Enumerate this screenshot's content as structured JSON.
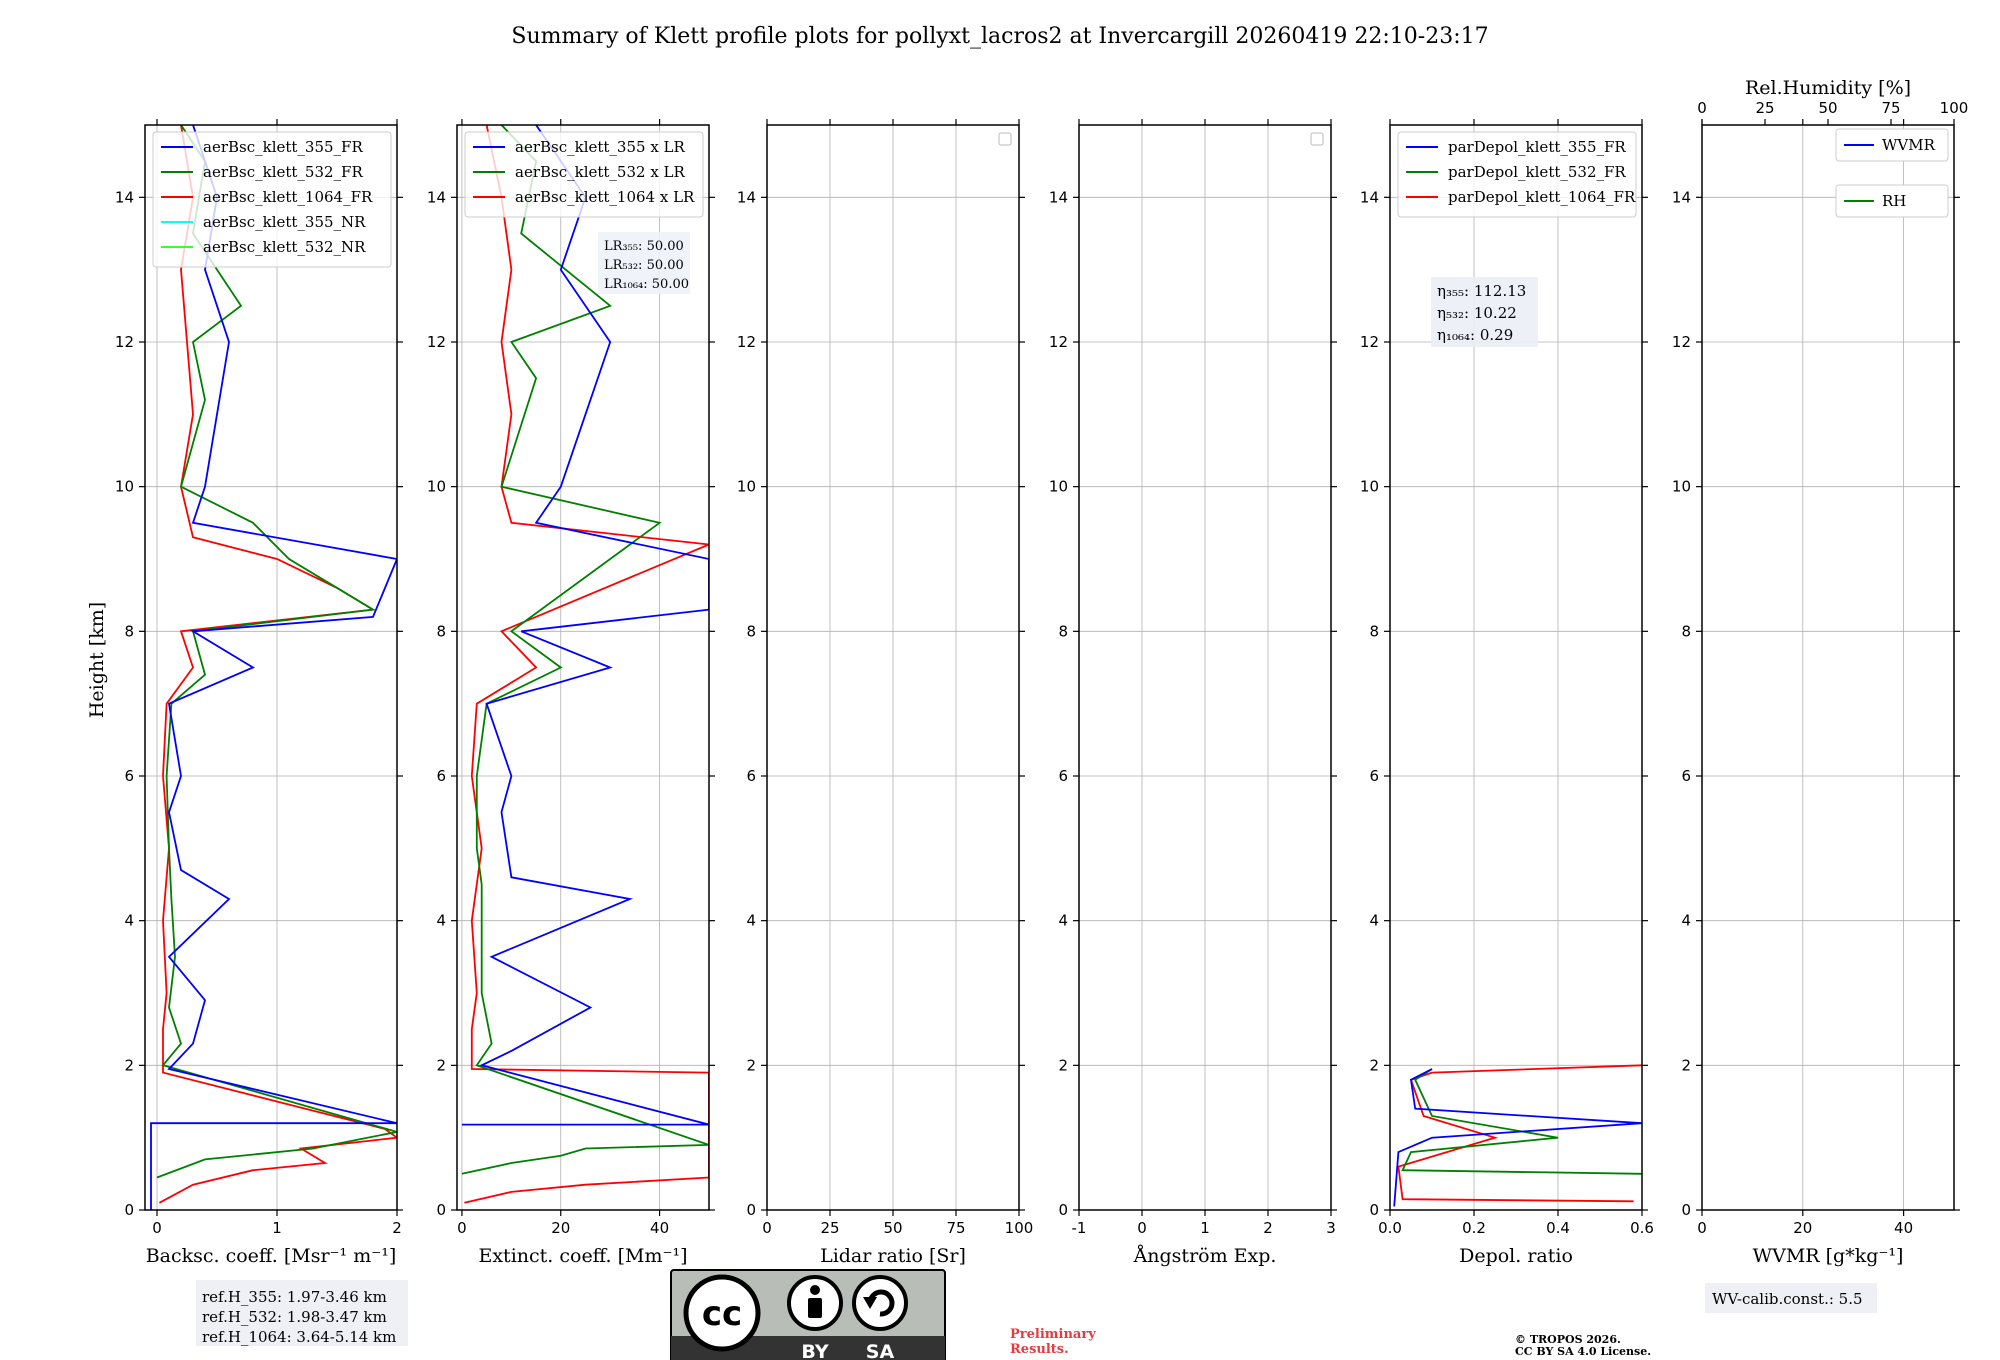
{
  "figure": {
    "title": "Summary of Klett profile plots for pollyxt_lacros2 at Invercargill 20260419 22:10-23:17",
    "ylabel": "Height [km]"
  },
  "chart_data": [
    {
      "id": "backscatter",
      "type": "line",
      "xlabel": "Backsc. coeff. [Msr⁻¹ m⁻¹]",
      "xlim": [
        -0.1,
        2.0
      ],
      "xticks": [
        0,
        1,
        2
      ],
      "ylim": [
        0,
        15
      ],
      "yticks": [
        0,
        2,
        4,
        6,
        8,
        10,
        12,
        14
      ],
      "grid": true,
      "legend": [
        "aerBsc_klett_355_FR",
        "aerBsc_klett_532_FR",
        "aerBsc_klett_1064_FR",
        "aerBsc_klett_355_NR",
        "aerBsc_klett_532_NR"
      ],
      "legend_colors": [
        "#0000ff",
        "#008000",
        "#ff0000",
        "#00ffff",
        "#33ff33"
      ],
      "series": [
        {
          "name": "aerBsc_klett_1064_FR",
          "color": "#ff0000",
          "points": [
            [
              0.02,
              0.1
            ],
            [
              0.3,
              0.35
            ],
            [
              0.8,
              0.55
            ],
            [
              1.4,
              0.65
            ],
            [
              1.2,
              0.85
            ],
            [
              2.0,
              1.0
            ],
            [
              1.9,
              1.12
            ],
            [
              0.05,
              1.9
            ],
            [
              0.05,
              2.5
            ],
            [
              0.08,
              3.0
            ],
            [
              0.05,
              4.0
            ],
            [
              0.1,
              5.0
            ],
            [
              0.05,
              6.0
            ],
            [
              0.08,
              7.0
            ],
            [
              0.3,
              7.5
            ],
            [
              0.2,
              8.0
            ],
            [
              1.8,
              8.3
            ],
            [
              1.5,
              8.6
            ],
            [
              1.0,
              9.0
            ],
            [
              0.3,
              9.3
            ],
            [
              0.2,
              10.0
            ],
            [
              0.3,
              11.0
            ],
            [
              0.25,
              12.0
            ],
            [
              0.2,
              13.0
            ],
            [
              0.3,
              14.0
            ],
            [
              0.2,
              15.0
            ]
          ]
        },
        {
          "name": "aerBsc_klett_532_FR",
          "color": "#008000",
          "points": [
            [
              0.0,
              0.45
            ],
            [
              0.4,
              0.7
            ],
            [
              1.3,
              0.85
            ],
            [
              2.0,
              1.08
            ],
            [
              0.05,
              2.0
            ],
            [
              0.2,
              2.3
            ],
            [
              0.1,
              2.8
            ],
            [
              0.15,
              3.5
            ],
            [
              0.12,
              4.3
            ],
            [
              0.1,
              5.0
            ],
            [
              0.08,
              6.0
            ],
            [
              0.12,
              7.0
            ],
            [
              0.4,
              7.4
            ],
            [
              0.3,
              8.0
            ],
            [
              1.8,
              8.3
            ],
            [
              1.4,
              8.7
            ],
            [
              1.1,
              9.0
            ],
            [
              0.8,
              9.5
            ],
            [
              0.2,
              10.0
            ],
            [
              0.4,
              11.2
            ],
            [
              0.3,
              12.0
            ],
            [
              0.7,
              12.5
            ],
            [
              0.3,
              13.5
            ],
            [
              0.4,
              14.5
            ],
            [
              0.2,
              15.0
            ]
          ]
        },
        {
          "name": "aerBsc_klett_355_FR",
          "color": "#0000ff",
          "points": [
            [
              -0.05,
              0.0
            ],
            [
              -0.05,
              1.2
            ],
            [
              2.0,
              1.2
            ],
            [
              0.1,
              1.95
            ],
            [
              0.3,
              2.3
            ],
            [
              0.4,
              2.9
            ],
            [
              0.1,
              3.5
            ],
            [
              0.6,
              4.3
            ],
            [
              0.2,
              4.7
            ],
            [
              0.1,
              5.5
            ],
            [
              0.2,
              6.0
            ],
            [
              0.1,
              7.0
            ],
            [
              0.8,
              7.5
            ],
            [
              0.3,
              8.0
            ],
            [
              1.8,
              8.2
            ],
            [
              2.0,
              9.0
            ],
            [
              0.3,
              9.5
            ],
            [
              0.4,
              10.0
            ],
            [
              0.5,
              11.0
            ],
            [
              0.6,
              12.0
            ],
            [
              0.4,
              13.0
            ],
            [
              0.5,
              14.0
            ],
            [
              0.3,
              15.0
            ]
          ]
        }
      ],
      "annotation": [
        "ref.H_355: 1.97-3.46 km",
        "ref.H_532: 1.98-3.47 km",
        "ref.H_1064: 3.64-5.14 km"
      ]
    },
    {
      "id": "extinction",
      "type": "line",
      "xlabel": "Extinct. coeff. [Mm⁻¹]",
      "xlim": [
        -1,
        50
      ],
      "xticks": [
        0,
        20,
        40
      ],
      "ylim": [
        0,
        15
      ],
      "grid": true,
      "legend": [
        "aerBsc_klett_355 x LR",
        "aerBsc_klett_532 x LR",
        "aerBsc_klett_1064 x LR"
      ],
      "legend_colors": [
        "#0000ff",
        "#008000",
        "#ff0000"
      ],
      "series": [
        {
          "name": "aerBsc_klett_1064 x LR",
          "color": "#ff0000",
          "points": [
            [
              0.5,
              0.1
            ],
            [
              10,
              0.25
            ],
            [
              25,
              0.35
            ],
            [
              50,
              0.45
            ],
            [
              50,
              1.9
            ],
            [
              2,
              1.95
            ],
            [
              2,
              2.5
            ],
            [
              3,
              3.0
            ],
            [
              2,
              4.0
            ],
            [
              4,
              5.0
            ],
            [
              2,
              6.0
            ],
            [
              3,
              7.0
            ],
            [
              15,
              7.5
            ],
            [
              8,
              8.0
            ],
            [
              50,
              9.2
            ],
            [
              10,
              9.5
            ],
            [
              8,
              10.0
            ],
            [
              10,
              11.0
            ],
            [
              8,
              12.0
            ],
            [
              10,
              13.0
            ],
            [
              8,
              14.0
            ],
            [
              5,
              15.0
            ]
          ]
        },
        {
          "name": "aerBsc_klett_532 x LR",
          "color": "#008000",
          "points": [
            [
              0,
              0.5
            ],
            [
              10,
              0.65
            ],
            [
              20,
              0.75
            ],
            [
              25,
              0.85
            ],
            [
              50,
              0.9
            ],
            [
              3,
              2.0
            ],
            [
              6,
              2.3
            ],
            [
              4,
              3.0
            ],
            [
              4,
              4.5
            ],
            [
              3,
              5.0
            ],
            [
              3,
              6.0
            ],
            [
              5,
              7.0
            ],
            [
              20,
              7.5
            ],
            [
              10,
              8.0
            ],
            [
              40,
              9.5
            ],
            [
              8,
              10.0
            ],
            [
              15,
              11.5
            ],
            [
              10,
              12.0
            ],
            [
              30,
              12.5
            ],
            [
              12,
              13.5
            ],
            [
              15,
              14.5
            ],
            [
              8,
              15.0
            ]
          ]
        },
        {
          "name": "aerBsc_klett_355 x LR",
          "color": "#0000ff",
          "points": [
            [
              0,
              1.18
            ],
            [
              50,
              1.18
            ],
            [
              4,
              2.0
            ],
            [
              10,
              2.2
            ],
            [
              26,
              2.8
            ],
            [
              6,
              3.5
            ],
            [
              34,
              4.3
            ],
            [
              10,
              4.6
            ],
            [
              8,
              5.5
            ],
            [
              10,
              6.0
            ],
            [
              5,
              7.0
            ],
            [
              30,
              7.5
            ],
            [
              12,
              8.0
            ],
            [
              50,
              8.3
            ],
            [
              50,
              9.0
            ],
            [
              15,
              9.5
            ],
            [
              20,
              10.0
            ],
            [
              25,
              11.0
            ],
            [
              30,
              12.0
            ],
            [
              20,
              13.0
            ],
            [
              25,
              14.0
            ],
            [
              15,
              15.0
            ]
          ]
        }
      ],
      "annotation": [
        "LR₃₅₅: 50.00",
        "LR₅₃₂: 50.00",
        "LR₁₀₆₄: 50.00"
      ]
    },
    {
      "id": "lidar_ratio",
      "type": "line",
      "xlabel": "Lidar ratio [Sr]",
      "xlim": [
        0,
        100
      ],
      "xticks": [
        0,
        25,
        50,
        75,
        100
      ],
      "ylim": [
        0,
        15
      ],
      "grid": true,
      "series": []
    },
    {
      "id": "angstrom",
      "type": "line",
      "xlabel": "Ångström Exp.",
      "xlim": [
        -1,
        3
      ],
      "xticks": [
        -1,
        0,
        1,
        2,
        3
      ],
      "ylim": [
        0,
        15
      ],
      "grid": true,
      "series": []
    },
    {
      "id": "depol",
      "type": "line",
      "xlabel": "Depol. ratio",
      "xlim": [
        0,
        0.6
      ],
      "xticks": [
        0.0,
        0.2,
        0.4,
        0.6
      ],
      "ylim": [
        0,
        15
      ],
      "grid": true,
      "legend": [
        "parDepol_klett_355_FR",
        "parDepol_klett_532_FR",
        "parDepol_klett_1064_FR"
      ],
      "legend_colors": [
        "#0000ff",
        "#008000",
        "#ff0000"
      ],
      "series": [
        {
          "name": "parDepol_klett_1064_FR",
          "color": "#ff0000",
          "points": [
            [
              0.58,
              0.12
            ],
            [
              0.03,
              0.15
            ],
            [
              0.02,
              0.6
            ],
            [
              0.25,
              1.0
            ],
            [
              0.08,
              1.3
            ],
            [
              0.05,
              1.8
            ],
            [
              0.1,
              1.9
            ],
            [
              0.6,
              2.0
            ]
          ]
        },
        {
          "name": "parDepol_klett_532_FR",
          "color": "#008000",
          "points": [
            [
              0.6,
              0.5
            ],
            [
              0.03,
              0.55
            ],
            [
              0.05,
              0.8
            ],
            [
              0.4,
              1.0
            ],
            [
              0.1,
              1.3
            ],
            [
              0.06,
              1.8
            ],
            [
              0.1,
              1.95
            ]
          ]
        },
        {
          "name": "parDepol_klett_355_FR",
          "color": "#0000ff",
          "points": [
            [
              0.01,
              0.05
            ],
            [
              0.02,
              0.8
            ],
            [
              0.1,
              1.0
            ],
            [
              0.6,
              1.2
            ],
            [
              0.06,
              1.4
            ],
            [
              0.05,
              1.8
            ],
            [
              0.1,
              1.95
            ]
          ]
        }
      ],
      "annotation": [
        "η₃₅₅: 112.13",
        "η₅₃₂: 10.22",
        "η₁₀₆₄: 0.29"
      ]
    },
    {
      "id": "wvmr",
      "type": "line",
      "xlabel": "WVMR [g*kg⁻¹]",
      "xlim": [
        0,
        50
      ],
      "xticks": [
        0,
        20,
        40
      ],
      "x2label": "Rel.Humidity [%]",
      "x2lim": [
        0,
        100
      ],
      "x2ticks": [
        0,
        25,
        50,
        75,
        100
      ],
      "ylim": [
        0,
        15
      ],
      "grid": true,
      "legend": [
        "WVMR",
        "RH"
      ],
      "legend_colors": [
        "#0000ff",
        "#008000"
      ],
      "series": [],
      "annotation": [
        "WV-calib.const.: 5.5"
      ]
    }
  ],
  "footer": {
    "license_badge": [
      "BY",
      "SA"
    ],
    "license_cc": "cc",
    "preliminary": [
      "Preliminary",
      "Results."
    ],
    "copyright": [
      "© TROPOS 2026.",
      "CC BY SA 4.0 License."
    ]
  }
}
